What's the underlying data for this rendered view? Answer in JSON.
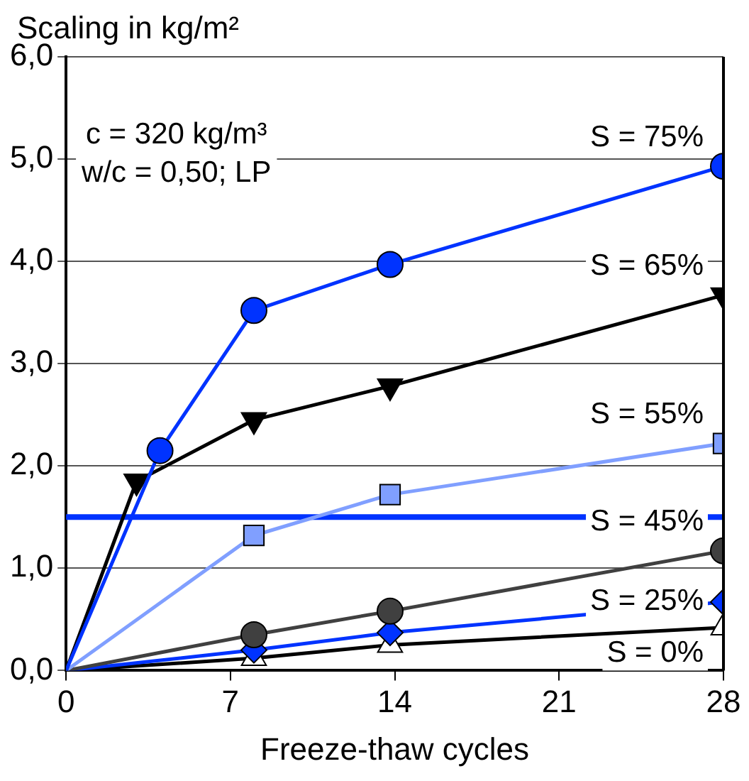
{
  "chart_data": {
    "type": "line",
    "ylabel": "Scaling in kg/m²",
    "xlabel": "Freeze-thaw cycles",
    "xlim": [
      0,
      28
    ],
    "xticks": [
      0,
      7,
      14,
      21,
      28
    ],
    "ylim": [
      0,
      6
    ],
    "yticks": [
      {
        "value": 0,
        "label": "0,0"
      },
      {
        "value": 1,
        "label": "1,0"
      },
      {
        "value": 2,
        "label": "2,0"
      },
      {
        "value": 3,
        "label": "3,0"
      },
      {
        "value": 4,
        "label": "4,0"
      },
      {
        "value": 5,
        "label": "5,0"
      },
      {
        "value": 6,
        "label": "6,0"
      }
    ],
    "grid": "y",
    "legend": false,
    "line_style": "solid",
    "series": [
      {
        "name": "S = 75%",
        "color": "#0033ff",
        "marker": "circle",
        "x": [
          0,
          4,
          8,
          13.8,
          28
        ],
        "values": [
          0,
          2.15,
          3.52,
          3.97,
          4.93
        ]
      },
      {
        "name": "S = 65%",
        "color": "#000000",
        "marker": "triangle-down",
        "x": [
          0,
          3,
          8,
          13.8,
          28
        ],
        "values": [
          0,
          1.85,
          2.45,
          2.78,
          3.67
        ]
      },
      {
        "name": "S = 55%",
        "color": "#809fff",
        "marker": "square",
        "x": [
          0,
          8,
          13.8,
          28
        ],
        "values": [
          0,
          1.32,
          1.72,
          2.22
        ]
      },
      {
        "name": "S = 45%",
        "color": "#404040",
        "marker": "circle",
        "x": [
          0,
          8,
          13.8,
          28
        ],
        "values": [
          0,
          0.35,
          0.58,
          1.17
        ]
      },
      {
        "name": "S = 25%",
        "color": "#0033ff",
        "marker": "diamond",
        "x": [
          0,
          8,
          13.8,
          28
        ],
        "values": [
          0,
          0.2,
          0.37,
          0.67
        ]
      },
      {
        "name": "S = 0%",
        "color": "#000000",
        "colors": [
          "#ffffff",
          "#ffffff",
          "#ffffff",
          "#ffffff"
        ],
        "marker": "triangle",
        "x": [
          0,
          8,
          13.8,
          28
        ],
        "values": [
          0,
          0.12,
          0.25,
          0.42
        ]
      }
    ],
    "ref_lines": [
      {
        "axis": "y",
        "value": 1.5,
        "color": "#0033ff"
      }
    ],
    "annotations": [
      "c = 320 kg/m³",
      "w/c = 0,50; LP"
    ]
  }
}
